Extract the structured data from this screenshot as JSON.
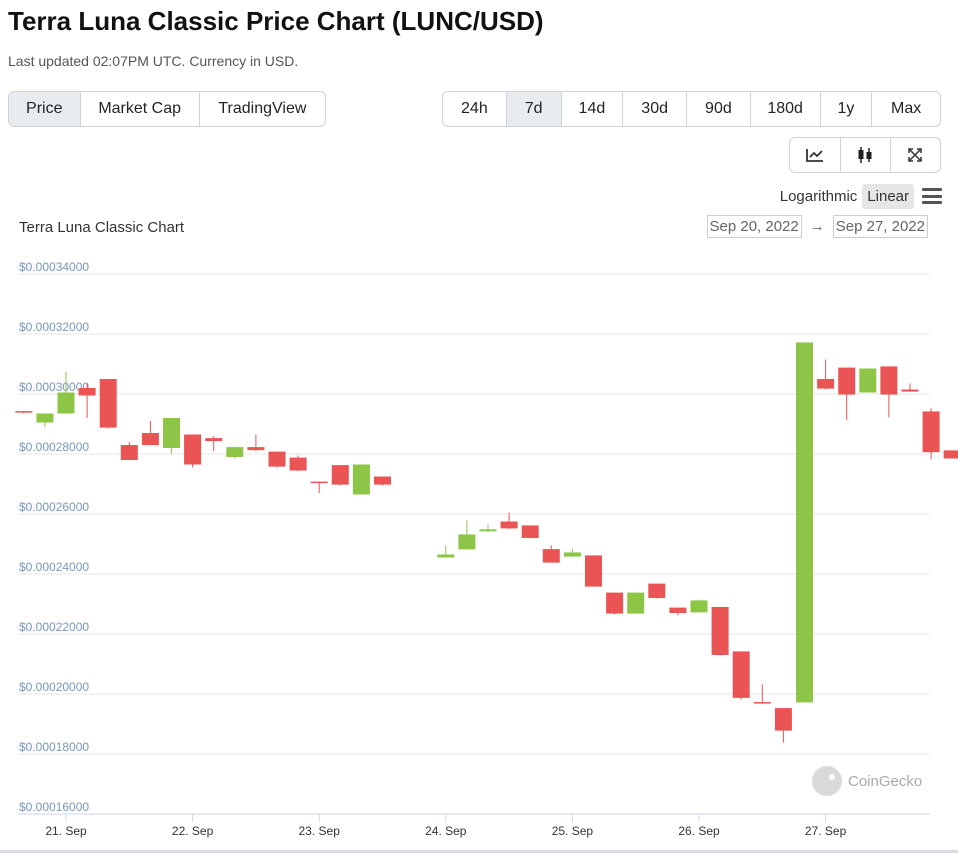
{
  "header": {
    "title": "Terra Luna Classic Price Chart (LUNC/USD)",
    "subtitle": "Last updated 02:07PM UTC. Currency in USD."
  },
  "view_tabs": [
    {
      "label": "Price",
      "active": true
    },
    {
      "label": "Market Cap",
      "active": false
    },
    {
      "label": "TradingView",
      "active": false
    }
  ],
  "range_tabs": [
    {
      "label": "24h",
      "active": false
    },
    {
      "label": "7d",
      "active": true
    },
    {
      "label": "14d",
      "active": false
    },
    {
      "label": "30d",
      "active": false
    },
    {
      "label": "90d",
      "active": false
    },
    {
      "label": "180d",
      "active": false
    },
    {
      "label": "1y",
      "active": false
    },
    {
      "label": "Max",
      "active": false
    }
  ],
  "chart_type_tabs": [
    {
      "icon": "line-chart-icon"
    },
    {
      "icon": "candlestick-icon"
    },
    {
      "icon": "expand-icon"
    }
  ],
  "scale": {
    "logarithmic": "Logarithmic",
    "linear": "Linear",
    "active": "linear"
  },
  "chart_header": {
    "title": "Terra Luna Classic Chart",
    "date_from": "Sep 20, 2022",
    "arrow": "→",
    "date_to": "Sep 27, 2022"
  },
  "watermark": "CoinGecko",
  "colors": {
    "up": "#8dc647",
    "down": "#ea5455",
    "grid": "#e6e6e6",
    "tick_label": "#7798bf"
  },
  "chart_data": {
    "type": "candlestick",
    "title": "Terra Luna Classic Chart",
    "ylim": [
      0.00016,
      0.00034
    ],
    "yticks": [
      0.00016,
      0.00018,
      0.0002,
      0.00022,
      0.00024,
      0.00026,
      0.00028,
      0.0003,
      0.00032,
      0.00034
    ],
    "ytick_labels": [
      "$0.00016000",
      "$0.00018000",
      "$0.00020000",
      "$0.00022000",
      "$0.00024000",
      "$0.00026000",
      "$0.00028000",
      "$0.00030000",
      "$0.00032000",
      "$0.00034000"
    ],
    "xticks": [
      0,
      6,
      12,
      18,
      24,
      30,
      36
    ],
    "xtick_labels": [
      "21. Sep",
      "22. Sep",
      "23. Sep",
      "24. Sep",
      "25. Sep",
      "26. Sep",
      "27. Sep"
    ],
    "x_unit": "hours since 21 Sep 00:00",
    "candles": [
      {
        "x": -2,
        "o": 0.0002943,
        "h": 0.0002943,
        "l": 0.0002935,
        "c": 0.0002938
      },
      {
        "x": -1,
        "o": 0.0002905,
        "h": 0.0002935,
        "l": 0.000289,
        "c": 0.0002935
      },
      {
        "x": 0,
        "o": 0.0002935,
        "h": 0.0003075,
        "l": 0.0002935,
        "c": 0.0003005
      },
      {
        "x": 1,
        "o": 0.000302,
        "h": 0.0003035,
        "l": 0.000292,
        "c": 0.0002995
      },
      {
        "x": 2,
        "o": 0.000305,
        "h": 0.000305,
        "l": 0.0002885,
        "c": 0.0002888
      },
      {
        "x": 3,
        "o": 0.000283,
        "h": 0.000284,
        "l": 0.000278,
        "c": 0.000278
      },
      {
        "x": 4,
        "o": 0.000287,
        "h": 0.000291,
        "l": 0.000283,
        "c": 0.000283
      },
      {
        "x": 5,
        "o": 0.000282,
        "h": 0.000292,
        "l": 0.00028,
        "c": 0.000292
      },
      {
        "x": 6,
        "o": 0.0002865,
        "h": 0.0002865,
        "l": 0.0002755,
        "c": 0.0002765
      },
      {
        "x": 7,
        "o": 0.0002853,
        "h": 0.000286,
        "l": 0.000281,
        "c": 0.0002843
      },
      {
        "x": 8,
        "o": 0.000279,
        "h": 0.0002825,
        "l": 0.0002785,
        "c": 0.0002823
      },
      {
        "x": 9,
        "o": 0.0002823,
        "h": 0.0002865,
        "l": 0.000281,
        "c": 0.0002813
      },
      {
        "x": 10,
        "o": 0.0002808,
        "h": 0.0002808,
        "l": 0.0002755,
        "c": 0.0002758
      },
      {
        "x": 11,
        "o": 0.0002788,
        "h": 0.0002795,
        "l": 0.0002743,
        "c": 0.0002745
      },
      {
        "x": 12,
        "o": 0.0002708,
        "h": 0.0002708,
        "l": 0.000267,
        "c": 0.0002705
      },
      {
        "x": 13,
        "o": 0.0002763,
        "h": 0.0002763,
        "l": 0.0002695,
        "c": 0.0002698
      },
      {
        "x": 14,
        "o": 0.0002665,
        "h": 0.0002765,
        "l": 0.0002665,
        "c": 0.0002765
      },
      {
        "x": 15,
        "o": 0.0002725,
        "h": 0.0002725,
        "l": 0.0002695,
        "c": 0.0002698
      },
      {
        "x": 18,
        "o": 0.0002455,
        "h": 0.0002495,
        "l": 0.0002455,
        "c": 0.0002465
      },
      {
        "x": 19,
        "o": 0.0002482,
        "h": 0.0002578,
        "l": 0.0002482,
        "c": 0.0002532
      },
      {
        "x": 20,
        "o": 0.0002542,
        "h": 0.0002565,
        "l": 0.000254,
        "c": 0.0002549
      },
      {
        "x": 21,
        "o": 0.0002575,
        "h": 0.0002605,
        "l": 0.000255,
        "c": 0.0002552
      },
      {
        "x": 22,
        "o": 0.0002562,
        "h": 0.0002562,
        "l": 0.0002518,
        "c": 0.000252
      },
      {
        "x": 23,
        "o": 0.0002483,
        "h": 0.0002495,
        "l": 0.0002438,
        "c": 0.0002438
      },
      {
        "x": 24,
        "o": 0.0002458,
        "h": 0.0002485,
        "l": 0.0002458,
        "c": 0.0002472
      },
      {
        "x": 25,
        "o": 0.0002462,
        "h": 0.0002462,
        "l": 0.0002358,
        "c": 0.0002358
      },
      {
        "x": 26,
        "o": 0.0002338,
        "h": 0.0002338,
        "l": 0.0002265,
        "c": 0.0002268
      },
      {
        "x": 27,
        "o": 0.0002268,
        "h": 0.0002338,
        "l": 0.0002268,
        "c": 0.0002338
      },
      {
        "x": 28,
        "o": 0.0002368,
        "h": 0.0002368,
        "l": 0.0002318,
        "c": 0.000232
      },
      {
        "x": 29,
        "o": 0.0002288,
        "h": 0.0002288,
        "l": 0.0002262,
        "c": 0.000227
      },
      {
        "x": 30,
        "o": 0.0002272,
        "h": 0.0002315,
        "l": 0.0002272,
        "c": 0.0002312
      },
      {
        "x": 31,
        "o": 0.000229,
        "h": 0.000229,
        "l": 0.0002128,
        "c": 0.000213
      },
      {
        "x": 32,
        "o": 0.0002142,
        "h": 0.0002142,
        "l": 0.0001982,
        "c": 0.0001987
      },
      {
        "x": 33,
        "o": 0.0001973,
        "h": 0.0002032,
        "l": 0.0001968,
        "c": 0.000197
      },
      {
        "x": 34,
        "o": 0.0001953,
        "h": 0.0001953,
        "l": 0.0001838,
        "c": 0.0001878
      },
      {
        "x": 35,
        "o": 0.0001972,
        "h": 0.0003172,
        "l": 0.0001972,
        "c": 0.0003172
      },
      {
        "x": 36,
        "o": 0.000305,
        "h": 0.0003115,
        "l": 0.0003015,
        "c": 0.0003018
      },
      {
        "x": 37,
        "o": 0.0003088,
        "h": 0.0003088,
        "l": 0.0002912,
        "c": 0.0002998
      },
      {
        "x": 38,
        "o": 0.0003005,
        "h": 0.0003085,
        "l": 0.0003005,
        "c": 0.0003085
      },
      {
        "x": 39,
        "o": 0.0003092,
        "h": 0.0003092,
        "l": 0.0002922,
        "c": 0.0002998
      },
      {
        "x": 40,
        "o": 0.0003015,
        "h": 0.0003035,
        "l": 0.0003008,
        "c": 0.0003008
      },
      {
        "x": 41,
        "o": 0.0002942,
        "h": 0.0002952,
        "l": 0.0002782,
        "c": 0.0002806
      },
      {
        "x": 42,
        "o": 0.0002812,
        "h": 0.0002812,
        "l": 0.0002785,
        "c": 0.0002785
      }
    ]
  }
}
